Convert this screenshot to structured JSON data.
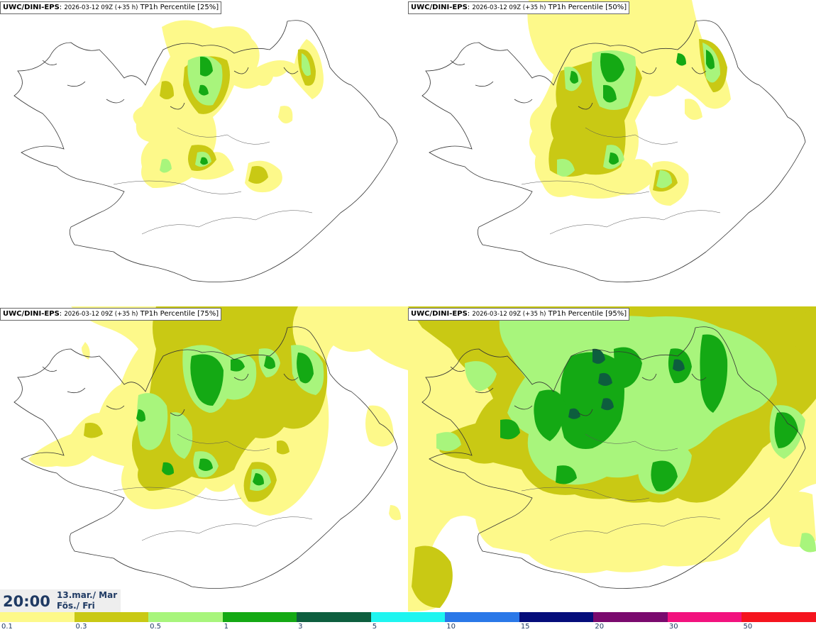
{
  "panels": [
    {
      "model": "UWC/DINI-EPS",
      "run_info": "2026-03-12 09Z (+35 h)",
      "field": "TP1h Percentile [25%]"
    },
    {
      "model": "UWC/DINI-EPS",
      "run_info": "2026-03-12 09Z (+35 h)",
      "field": "TP1h Percentile [50%]"
    },
    {
      "model": "UWC/DINI-EPS",
      "run_info": "2026-03-12 09Z (+35 h)",
      "field": "TP1h Percentile [75%]"
    },
    {
      "model": "UWC/DINI-EPS",
      "run_info": "2026-03-12 09Z (+35 h)",
      "field": "TP1h Percentile [95%]"
    }
  ],
  "valid_time": {
    "time": "20:00",
    "date": "13.mar./ Mar",
    "day": "Fös./ Fri"
  },
  "colorbar": {
    "colors": [
      "#fdf98a",
      "#c9c914",
      "#a8f57c",
      "#14a914",
      "#0d5e3e",
      "#1ef5f0",
      "#2a78e8",
      "#050d7a",
      "#7a0a6e",
      "#f2127e",
      "#f5141e"
    ],
    "labels": [
      "0.1",
      "0.3",
      "0.5",
      "1",
      "3",
      "5",
      "10",
      "15",
      "20",
      "30",
      "50"
    ]
  }
}
